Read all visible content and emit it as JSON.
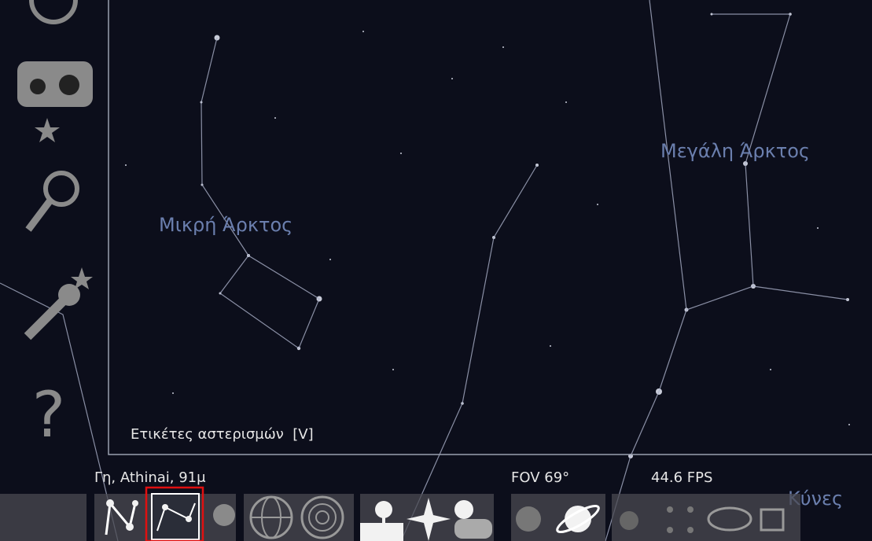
{
  "sky_labels": {
    "ursa_minor": "Μικρή Άρκτος",
    "ursa_major": "Μεγάλη Άρκτος",
    "canes": "Κύνες"
  },
  "tooltip": "Ετικέτες αστερισμών  [V]",
  "status_bar": {
    "location": "Γη, Athinai, 91μ",
    "fov": "FOV 69°",
    "fps": "44.6 FPS"
  }
}
